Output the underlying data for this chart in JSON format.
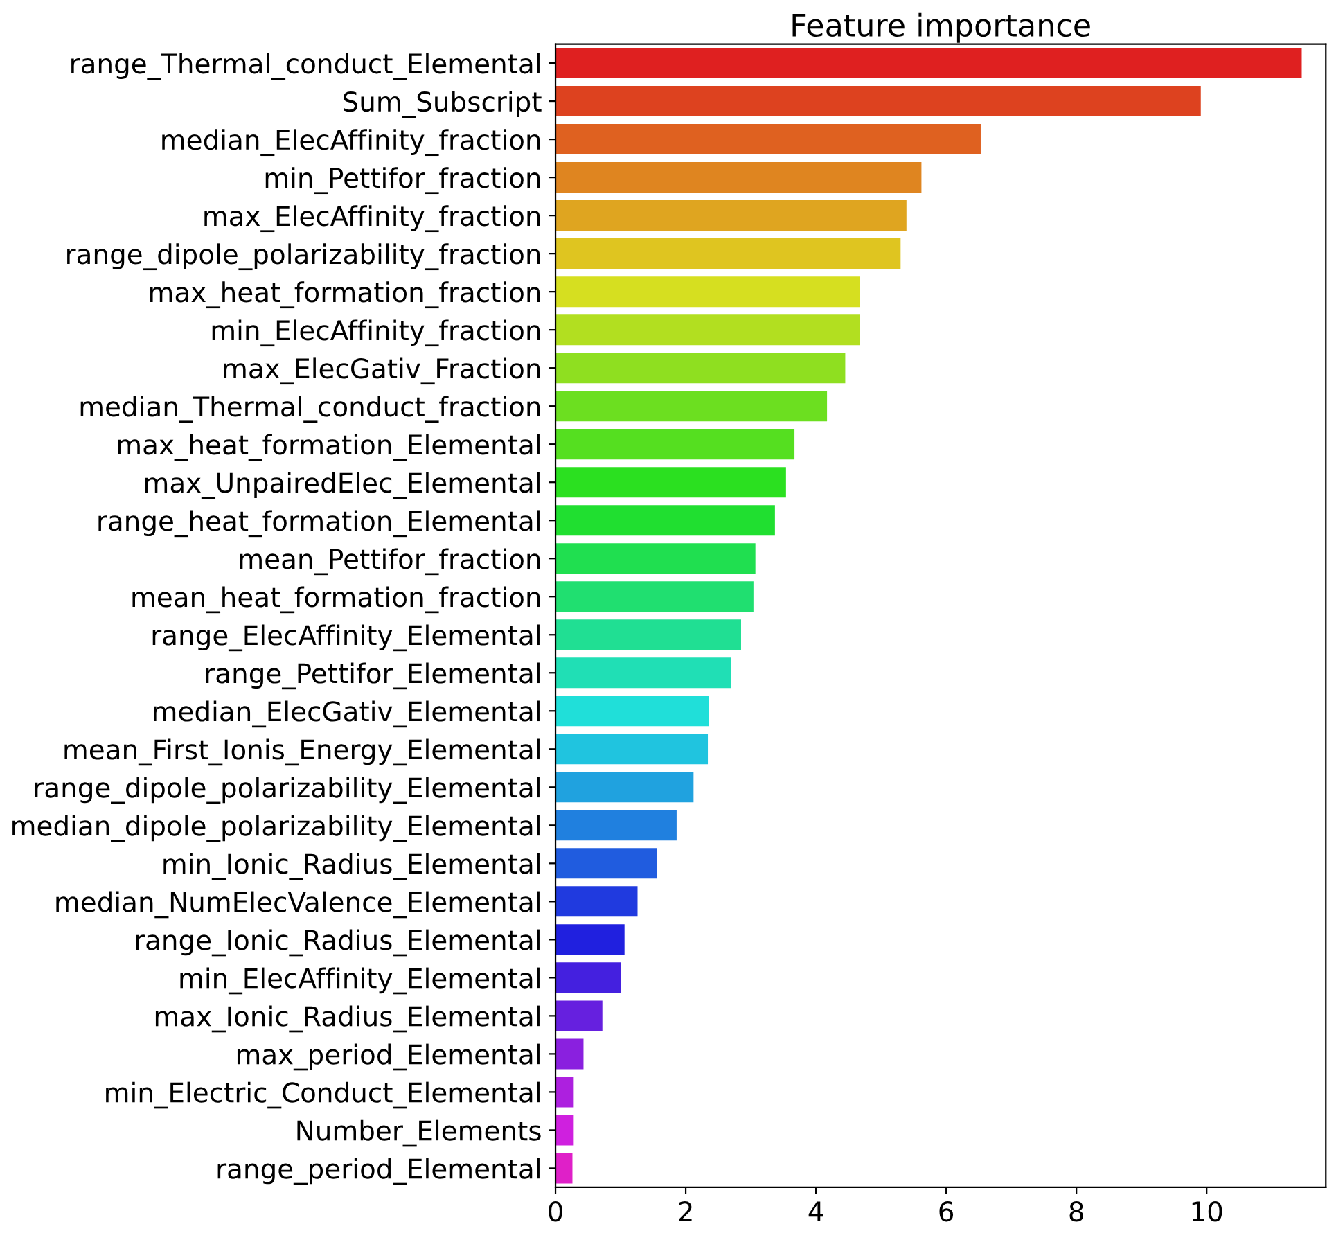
{
  "chart_data": {
    "type": "bar",
    "orientation": "horizontal",
    "title": "Feature importance",
    "categories": [
      "range_Thermal_conduct_Elemental",
      "Sum_Subscript",
      "median_ElecAffinity_fraction",
      "min_Pettifor_fraction",
      "max_ElecAffinity_fraction",
      "range_dipole_polarizability_fraction",
      "max_heat_formation_fraction",
      "min_ElecAffinity_fraction",
      "max_ElecGativ_Fraction",
      "median_Thermal_conduct_fraction",
      "max_heat_formation_Elemental",
      "max_UnpairedElec_Elemental",
      "range_heat_formation_Elemental",
      "mean_Pettifor_fraction",
      "mean_heat_formation_fraction",
      "range_ElecAffinity_Elemental",
      "range_Pettifor_Elemental",
      "median_ElecGativ_Elemental",
      "mean_First_Ionis_Energy_Elemental",
      "range_dipole_polarizability_Elemental",
      "median_dipole_polarizability_Elemental",
      "min_Ionic_Radius_Elemental",
      "median_NumElecValence_Elemental",
      "range_Ionic_Radius_Elemental",
      "min_ElecAffinity_Elemental",
      "max_Ionic_Radius_Elemental",
      "max_period_Elemental",
      "min_Electric_Conduct_Elemental",
      "Number_Elements",
      "range_period_Elemental"
    ],
    "values": [
      11.46,
      9.91,
      6.53,
      5.62,
      5.39,
      5.3,
      4.67,
      4.67,
      4.45,
      4.17,
      3.67,
      3.54,
      3.37,
      3.07,
      3.04,
      2.85,
      2.7,
      2.36,
      2.34,
      2.12,
      1.86,
      1.56,
      1.26,
      1.06,
      1.0,
      0.72,
      0.43,
      0.28,
      0.28,
      0.26
    ],
    "colors": [
      "#df2020",
      "#dd421f",
      "#df6120",
      "#df8520",
      "#dfa520",
      "#dfc520",
      "#d6df20",
      "#b2df20",
      "#8fdf20",
      "#6cdf20",
      "#55df20",
      "#2be020",
      "#20df30",
      "#20df50",
      "#20df70",
      "#20df93",
      "#20dfb5",
      "#20dfd9",
      "#20c4df",
      "#20a2df",
      "#2080df",
      "#205cdf",
      "#203adf",
      "#2020df",
      "#4420df",
      "#6620df",
      "#8a20df",
      "#ad20df",
      "#cf20df",
      "#df20c8"
    ],
    "xlim": [
      0,
      11.83
    ],
    "xticks": [
      0,
      2,
      4,
      6,
      8,
      10
    ],
    "grid": false,
    "legend": false
  }
}
